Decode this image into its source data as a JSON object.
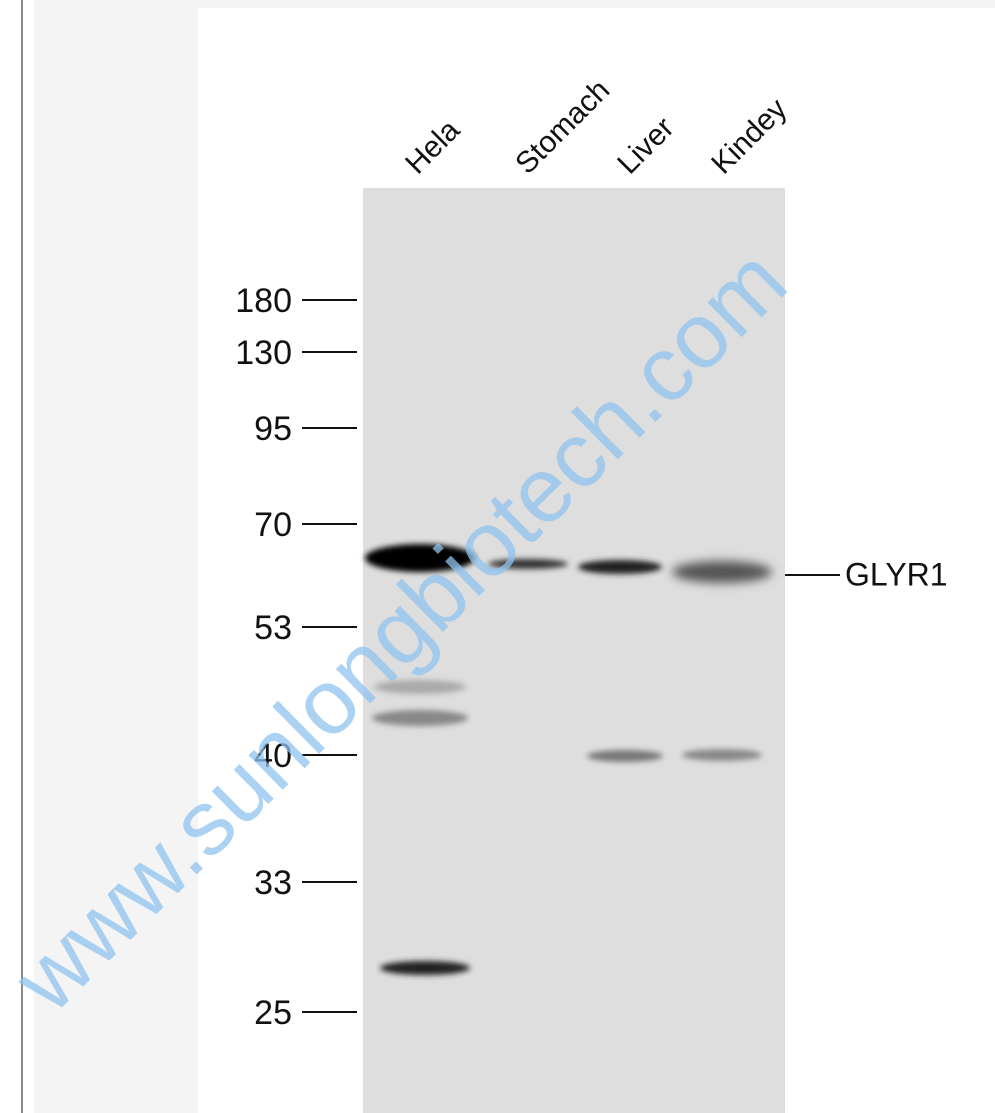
{
  "lanes": [
    "Hela",
    "Stomach",
    "Liver",
    "Kindey"
  ],
  "markers": [
    180,
    130,
    95,
    70,
    53,
    40,
    33,
    25
  ],
  "band_label": "GLYR1",
  "watermark": "www.sunlongbiotech.com"
}
